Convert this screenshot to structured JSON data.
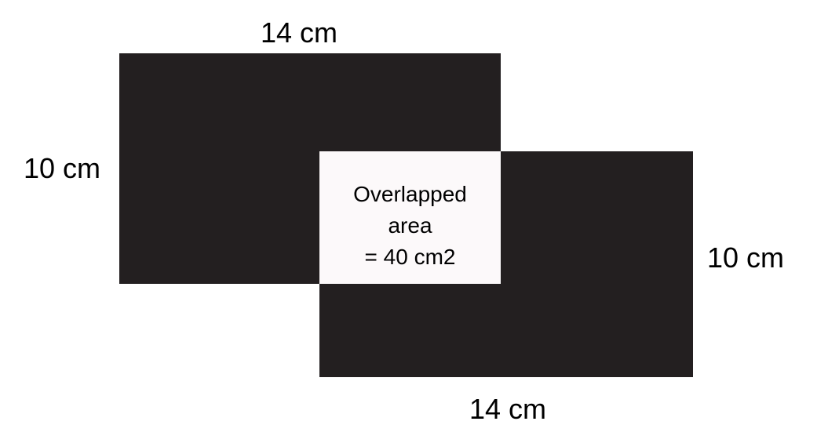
{
  "diagram": {
    "rectangles": [
      {
        "name": "rectangle-1",
        "width": "14 cm",
        "height": "10 cm"
      },
      {
        "name": "rectangle-2",
        "width": "14 cm",
        "height": "10 cm"
      }
    ],
    "labels": {
      "top_width": "14 cm",
      "left_height": "10 cm",
      "right_height": "10 cm",
      "bottom_width": "14 cm"
    },
    "overlap": {
      "line1": "Overlapped",
      "line2": "area",
      "line3": "= 40 cm2"
    },
    "colors": {
      "rectangle_fill": "#231f20",
      "overlap_fill": "#fcf9fa",
      "background": "#ffffff"
    }
  }
}
